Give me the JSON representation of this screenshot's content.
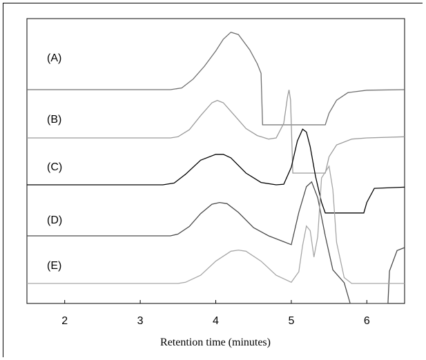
{
  "chart_data": {
    "type": "line",
    "title": "",
    "xlabel": "Retention time (minutes)",
    "ylabel": "",
    "xlim": [
      1.5,
      6.5
    ],
    "x_ticks": [
      "2",
      "3",
      "4",
      "5",
      "6"
    ],
    "grid": false,
    "legend": "none",
    "series": [
      {
        "name": "(A)",
        "color": "#6e6e6e",
        "x": [
          1.5,
          3.4,
          3.55,
          3.7,
          3.85,
          4.0,
          4.1,
          4.2,
          4.3,
          4.45,
          4.55,
          4.6,
          4.62,
          5.45,
          5.5,
          5.6,
          5.75,
          6.0,
          6.5
        ],
        "y": [
          1.0,
          1.0,
          0.97,
          0.82,
          0.6,
          0.34,
          0.14,
          0.02,
          0.06,
          0.32,
          0.56,
          0.72,
          1.6,
          1.6,
          1.4,
          1.18,
          1.05,
          1.01,
          1.0
        ]
      },
      {
        "name": "(B)",
        "color": "#9a9a9a",
        "x": [
          1.5,
          3.4,
          3.5,
          3.65,
          3.8,
          3.95,
          4.02,
          4.1,
          4.25,
          4.4,
          4.55,
          4.7,
          4.8,
          4.9,
          4.95,
          4.97,
          4.99,
          5.02,
          5.45,
          5.5,
          5.6,
          5.8,
          6.0,
          6.5
        ],
        "y": [
          1.0,
          1.0,
          0.98,
          0.86,
          0.62,
          0.4,
          0.36,
          0.4,
          0.62,
          0.84,
          0.96,
          1.02,
          1.0,
          0.75,
          0.3,
          0.18,
          0.35,
          1.6,
          1.6,
          1.32,
          1.12,
          1.02,
          1.0,
          0.98
        ]
      },
      {
        "name": "(C)",
        "color": "#000000",
        "x": [
          1.5,
          3.3,
          3.45,
          3.6,
          3.8,
          4.0,
          4.1,
          4.2,
          4.4,
          4.6,
          4.8,
          4.9,
          5.0,
          5.08,
          5.15,
          5.2,
          5.25,
          5.32,
          5.4,
          5.45,
          5.5,
          5.96,
          6.0,
          6.1,
          6.5
        ],
        "y": [
          1.0,
          1.0,
          0.97,
          0.82,
          0.58,
          0.48,
          0.48,
          0.54,
          0.8,
          0.96,
          1.0,
          0.99,
          0.7,
          0.25,
          0.05,
          0.1,
          0.35,
          0.85,
          1.3,
          1.48,
          1.48,
          1.48,
          1.3,
          1.06,
          1.04
        ]
      },
      {
        "name": "(D)",
        "color": "#4a4a4a",
        "x": [
          1.5,
          3.4,
          3.5,
          3.65,
          3.8,
          3.95,
          4.05,
          4.15,
          4.3,
          4.5,
          4.7,
          4.9,
          5.0,
          5.1,
          5.2,
          5.27,
          5.35,
          5.45,
          5.55,
          5.7,
          5.78,
          5.8,
          6.28,
          6.3,
          6.4,
          6.5
        ],
        "y": [
          1.0,
          1.0,
          0.97,
          0.84,
          0.62,
          0.46,
          0.43,
          0.45,
          0.6,
          0.86,
          1.0,
          1.1,
          1.15,
          0.6,
          0.16,
          0.08,
          0.35,
          1.0,
          1.58,
          1.8,
          2.2,
          2.45,
          2.45,
          1.6,
          1.25,
          1.2
        ]
      },
      {
        "name": "(E)",
        "color": "#a6a6a6",
        "x": [
          1.5,
          3.5,
          3.6,
          3.8,
          4.0,
          4.2,
          4.3,
          4.4,
          4.6,
          4.8,
          5.0,
          5.1,
          5.15,
          5.2,
          5.25,
          5.3,
          5.35,
          5.4,
          5.5,
          5.55,
          5.6,
          5.7,
          5.8,
          6.0,
          6.5
        ],
        "y": [
          1.0,
          1.0,
          0.98,
          0.86,
          0.62,
          0.45,
          0.43,
          0.45,
          0.62,
          0.86,
          0.98,
          0.8,
          0.35,
          0.02,
          0.1,
          0.55,
          0.2,
          -0.8,
          -1.0,
          -0.6,
          0.3,
          0.9,
          1.0,
          1.0,
          1.0
        ]
      }
    ]
  }
}
